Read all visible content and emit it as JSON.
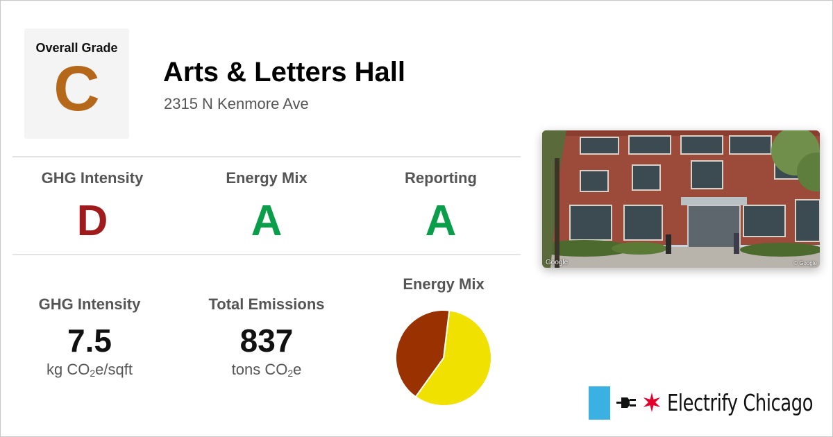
{
  "overall": {
    "label": "Overall Grade",
    "grade": "C",
    "color": "#b5681a"
  },
  "building": {
    "name": "Arts & Letters Hall",
    "address": "2315 N Kenmore Ave"
  },
  "grades": [
    {
      "label": "GHG Intensity",
      "grade": "D",
      "color": "#a01c1c"
    },
    {
      "label": "Energy Mix",
      "grade": "A",
      "color": "#0a9d4a"
    },
    {
      "label": "Reporting",
      "grade": "A",
      "color": "#0a9d4a"
    }
  ],
  "stats": {
    "ghg": {
      "label": "GHG Intensity",
      "value": "7.5",
      "unit_prefix": "kg CO",
      "unit_sub": "2",
      "unit_suffix": "e/sqft"
    },
    "emissions": {
      "label": "Total Emissions",
      "value": "837",
      "unit_prefix": "tons CO",
      "unit_sub": "2",
      "unit_suffix": "e"
    }
  },
  "energy_mix": {
    "label": "Energy Mix"
  },
  "chart_data": {
    "type": "pie",
    "title": "Energy Mix",
    "slices": [
      {
        "value": 58,
        "color": "#f0e100"
      },
      {
        "value": 42,
        "color": "#9a3100"
      }
    ]
  },
  "photo": {
    "attribution": "Google",
    "copyright": "© Google"
  },
  "brand": {
    "name": "Electrify Chicago",
    "bar_color": "#3bb1e3",
    "star_color": "#e4002b"
  }
}
